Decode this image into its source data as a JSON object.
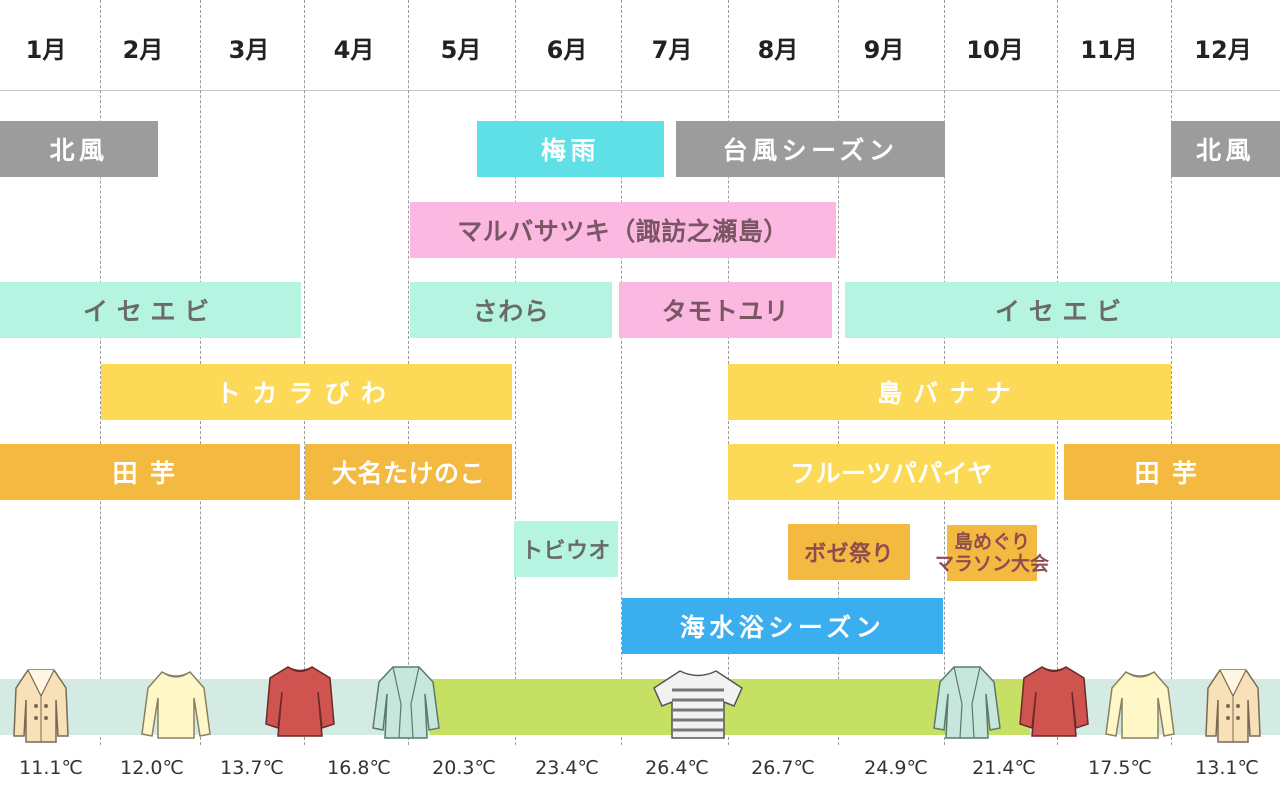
{
  "months": [
    "1月",
    "2月",
    "3月",
    "4月",
    "5月",
    "6月",
    "7月",
    "8月",
    "9月",
    "10月",
    "11月",
    "12月"
  ],
  "rows": {
    "weather": {
      "north_wind_1": "北風",
      "rainy": "梅雨",
      "typhoon": "台風シーズン",
      "north_wind_2": "北風"
    },
    "flower_marubasatsuki": "マルバサツキ（諏訪之瀬島）",
    "seafood": {
      "ise_ebi_1": "イセエビ",
      "sawara": "さわら",
      "tamoto_yuri": "タモトユリ",
      "ise_ebi_2": "イセエビ"
    },
    "fruit": {
      "tokara_biwa": "トカラびわ",
      "shima_banana": "島バナナ"
    },
    "crops": {
      "taimo_1": "田芋",
      "daimyo_takenoko": "大名たけのこ",
      "fruit_papaya": "フルーツパパイヤ",
      "taimo_2": "田芋"
    },
    "events": {
      "tobiuo": "トビウオ",
      "boze_matsuri": "ボゼ祭り",
      "marathon_line1": "島めぐり",
      "marathon_line2": "マラソン大会"
    },
    "beach": "海水浴シーズン"
  },
  "clothing_icons": [
    "coat-icon",
    "sweater-icon",
    "blouse-icon",
    "cardigan-icon",
    "tshirt-icon",
    "cardigan-icon",
    "blouse-icon",
    "sweater-icon",
    "coat-icon"
  ],
  "temperatures": [
    "11.1℃",
    "12.0℃",
    "13.7℃",
    "16.8℃",
    "20.3℃",
    "23.4℃",
    "26.4℃",
    "26.7℃",
    "24.9℃",
    "21.4℃",
    "17.5℃",
    "13.1℃"
  ],
  "colors": {
    "gray": "#9c9c9c",
    "cyan": "#5ee0e6",
    "pink": "#fbb8e0",
    "mint": "#b4f4e0",
    "yellow": "#fcd957",
    "orange": "#f3b940",
    "blue": "#3aaeef",
    "cool_band": "#d4ebe3",
    "warm_band": "#c6e063"
  }
}
